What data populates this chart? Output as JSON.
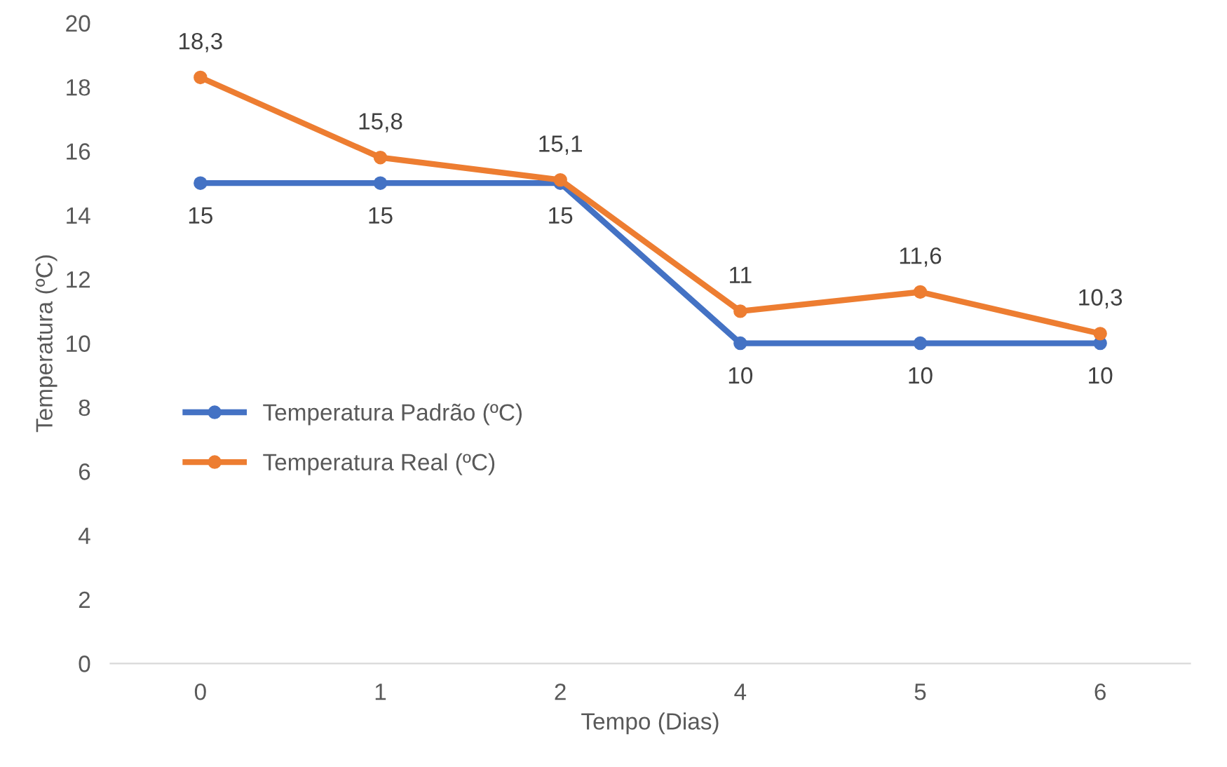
{
  "chart_data": {
    "type": "line",
    "xlabel": "Tempo (Dias)",
    "ylabel": "Temperatura (ºC)",
    "categories": [
      "0",
      "1",
      "2",
      "4",
      "5",
      "6"
    ],
    "ylim": [
      0,
      20
    ],
    "yticks": [
      0,
      2,
      4,
      6,
      8,
      10,
      12,
      14,
      16,
      18,
      20
    ],
    "grid": false,
    "legend": "left",
    "marker": "circle",
    "line_style": "solid",
    "series": [
      {
        "name": "Temperatura Padrão (ºC)",
        "color": "#4472c4",
        "values": [
          15,
          15,
          15,
          10,
          10,
          10
        ],
        "value_labels": [
          "15",
          "15",
          "15",
          "10",
          "10",
          "10"
        ]
      },
      {
        "name": "Temperatura Real (ºC)",
        "color": "#ed7d31",
        "values": [
          18.3,
          15.8,
          15.1,
          11,
          11.6,
          10.3
        ],
        "value_labels": [
          "18,3",
          "15,8",
          "15,1",
          "11",
          "11,6",
          "10,3"
        ]
      }
    ]
  }
}
